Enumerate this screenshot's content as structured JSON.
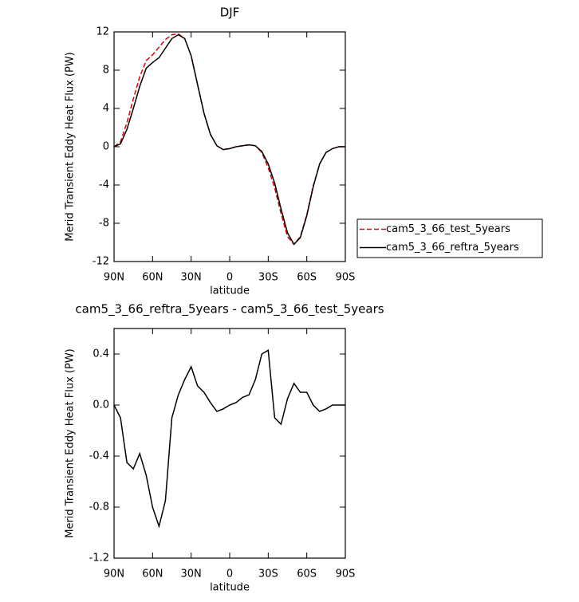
{
  "chart_data": [
    {
      "type": "line",
      "title": "DJF",
      "xlabel": "latitude",
      "ylabel": "Merid Transient Eddy Heat Flux (PW)",
      "x": [
        90,
        85,
        80,
        75,
        70,
        65,
        60,
        55,
        50,
        45,
        40,
        35,
        30,
        25,
        20,
        15,
        10,
        5,
        0,
        -5,
        -10,
        -15,
        -20,
        -25,
        -30,
        -35,
        -40,
        -45,
        -50,
        -55,
        -60,
        -65,
        -70,
        -75,
        -80,
        -85,
        -90
      ],
      "series": [
        {
          "name": "cam5_3_66_test_5years",
          "color": "#e00000",
          "line_style": "dashed",
          "values": [
            0,
            0.5,
            2.5,
            5,
            7.3,
            9,
            9.6,
            10.4,
            11.2,
            11.7,
            11.8,
            11.3,
            9.5,
            6.5,
            3.5,
            1.3,
            0.1,
            -0.3,
            -0.2,
            0,
            0.1,
            0.2,
            0.1,
            -0.6,
            -2.2,
            -4.3,
            -7,
            -9.4,
            -10.2,
            -9.4,
            -7.1,
            -4.1,
            -1.8,
            -0.6,
            -0.2,
            0,
            0
          ]
        },
        {
          "name": "cam5_3_66_reftra_5years",
          "color": "#000000",
          "line_style": "solid",
          "values": [
            0,
            0.3,
            1.8,
            4,
            6.3,
            8.2,
            8.8,
            9.3,
            10.3,
            11.3,
            11.7,
            11.3,
            9.5,
            6.5,
            3.5,
            1.3,
            0.1,
            -0.3,
            -0.2,
            0,
            0.1,
            0.2,
            0.1,
            -0.5,
            -1.8,
            -3.8,
            -6.5,
            -9,
            -10.2,
            -9.5,
            -7.2,
            -4.2,
            -1.8,
            -0.6,
            -0.2,
            0,
            0
          ]
        }
      ],
      "xlim": [
        90,
        -90
      ],
      "xticks": [
        {
          "value": 90,
          "label": "90N"
        },
        {
          "value": 60,
          "label": "60N"
        },
        {
          "value": 30,
          "label": "30N"
        },
        0,
        {
          "value": -30,
          "label": "30S"
        },
        {
          "value": -60,
          "label": "60S"
        },
        {
          "value": -90,
          "label": "90S"
        }
      ],
      "ylim": [
        -12,
        12
      ],
      "yticks": [
        -12,
        -8,
        -4,
        0,
        4,
        8,
        12
      ],
      "legend": "right"
    },
    {
      "type": "line",
      "title": "cam5_3_66_reftra_5years - cam5_3_66_test_5years",
      "xlabel": "latitude",
      "ylabel": "Merid Transient Eddy Heat Flux (PW)",
      "x": [
        90,
        85,
        80,
        75,
        70,
        65,
        60,
        55,
        50,
        45,
        40,
        35,
        30,
        25,
        20,
        15,
        10,
        5,
        0,
        -5,
        -10,
        -15,
        -20,
        -25,
        -30,
        -35,
        -40,
        -45,
        -50,
        -55,
        -60,
        -65,
        -70,
        -75,
        -80,
        -85,
        -90
      ],
      "series": [
        {
          "color": "#000000",
          "line_style": "solid",
          "values": [
            0,
            -0.1,
            -0.45,
            -0.5,
            -0.38,
            -0.55,
            -0.8,
            -0.95,
            -0.75,
            -0.1,
            0.08,
            0.2,
            0.3,
            0.15,
            0.1,
            0.02,
            -0.05,
            -0.03,
            0,
            0.02,
            0.06,
            0.08,
            0.2,
            0.4,
            0.43,
            -0.1,
            -0.15,
            0.05,
            0.17,
            0.1,
            0.1,
            0,
            -0.05,
            -0.03,
            0,
            0,
            0
          ]
        }
      ],
      "xlim": [
        90,
        -90
      ],
      "xticks": [
        {
          "value": 90,
          "label": "90N"
        },
        {
          "value": 60,
          "label": "60N"
        },
        {
          "value": 30,
          "label": "30N"
        },
        0,
        {
          "value": -30,
          "label": "30S"
        },
        {
          "value": -60,
          "label": "60S"
        },
        {
          "value": -90,
          "label": "90S"
        }
      ],
      "ylim": [
        -1.2,
        0.6
      ],
      "yticks": [
        -1.2,
        -0.8,
        -0.4,
        {
          "value": 0,
          "label": "0.0"
        },
        0.4
      ]
    }
  ]
}
